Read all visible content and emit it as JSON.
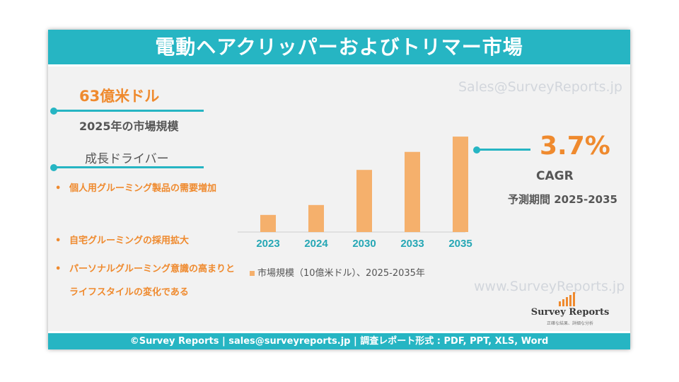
{
  "header": {
    "title": "電動ヘアクリッパーおよびトリマー市場"
  },
  "watermarks": {
    "top": "Sales@SurveyReports.jp",
    "bottom": "www.SurveyReports.jp"
  },
  "market": {
    "value": "63億米ドル",
    "label": "2025年の市場規模"
  },
  "drivers": {
    "title": "成長ドライバー",
    "items": [
      "個人用グルーミング製品の需要増加",
      "自宅グルーミングの採用拡大",
      "パーソナルグルーミング意識の高まりとライフスタイルの変化である"
    ]
  },
  "cagr": {
    "value": "3.7%",
    "label": "CAGR",
    "period": "予測期間 2025-2035"
  },
  "chart_data": {
    "type": "bar",
    "categories": [
      "2023",
      "2024",
      "2030",
      "2033",
      "2035"
    ],
    "series": [
      {
        "name": "市場規模（10億米ドル）、2025-2035年",
        "values": [
          1.9,
          3.0,
          6.9,
          8.9,
          10.6
        ]
      }
    ],
    "ylim": [
      0,
      11
    ],
    "legend": "bottom",
    "bar_color": "#f5b06c"
  },
  "logo": {
    "name": "Survey Reports",
    "tagline": "正確な結果、詳細な分析"
  },
  "footer": {
    "text": "©Survey Reports | sales@surveyreports.jp |  調査レポート形式 : PDF, PPT, XLS, Word"
  },
  "colors": {
    "accent": "#26b5c3",
    "highlight": "#ef8a2e",
    "text": "#555555"
  }
}
